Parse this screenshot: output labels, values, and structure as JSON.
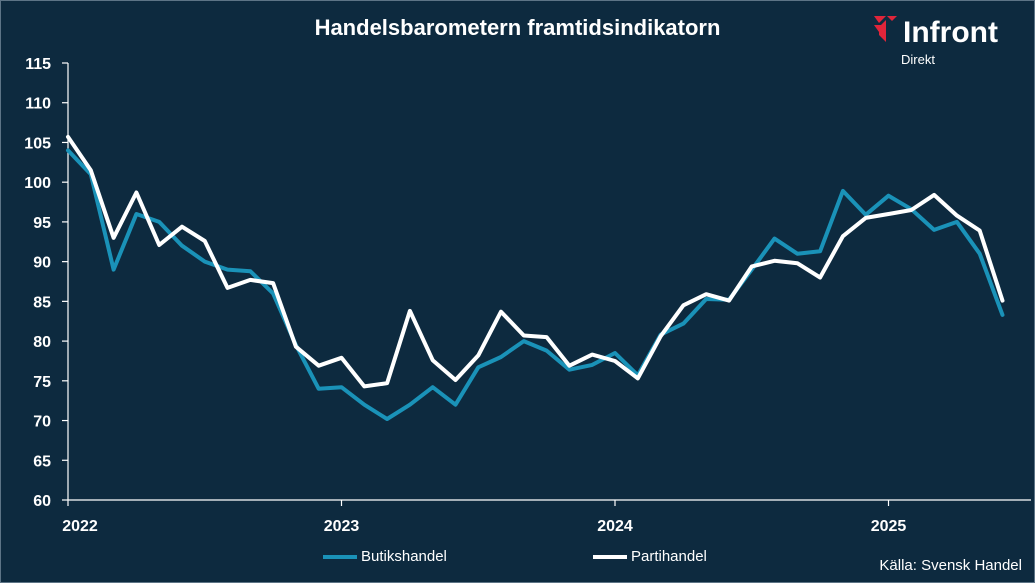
{
  "colors": {
    "background": "#0d2a3f",
    "axis": "#ffffff",
    "accent_red": "#e0253a"
  },
  "logo": {
    "name": "Infront",
    "subtitle": "Direkt",
    "icon": "infront-logo-icon"
  },
  "source": "Källa: Svensk Handel",
  "chart_data": {
    "type": "line",
    "title": "Handelsbarometern framtidsindikatorn",
    "xlabel": "",
    "ylabel": "",
    "ylim": [
      60,
      115
    ],
    "yticks": [
      60,
      65,
      70,
      75,
      80,
      85,
      90,
      95,
      100,
      105,
      110,
      115
    ],
    "xticks": [
      "2022",
      "2023",
      "2024",
      "2025"
    ],
    "grid": false,
    "legend_position": "bottom",
    "x_start": "2022-01",
    "series": [
      {
        "name": "Butikshandel",
        "color": "#1a92b8",
        "values": [
          104,
          101,
          89,
          96,
          95,
          92,
          90,
          89,
          88.8,
          86,
          79.5,
          74,
          74.2,
          72,
          70.2,
          72,
          74.2,
          72,
          76.7,
          78,
          80,
          78.8,
          76.4,
          77,
          78.5,
          75.7,
          80.8,
          82.2,
          85.3,
          85.2,
          89,
          92.9,
          91,
          91.3,
          98.9,
          95.9,
          98.3,
          96.6,
          94,
          95,
          91,
          83.3
        ]
      },
      {
        "name": "Partihandel",
        "color": "#ffffff",
        "values": [
          105.7,
          101.5,
          93,
          98.7,
          92.1,
          94.4,
          92.6,
          86.7,
          87.7,
          87.3,
          79.3,
          76.9,
          77.9,
          74.3,
          74.7,
          83.8,
          77.6,
          75.1,
          78.2,
          83.7,
          80.7,
          80.5,
          76.9,
          78.3,
          77.5,
          75.3,
          80.6,
          84.5,
          85.9,
          85.1,
          89.4,
          90.1,
          89.8,
          88,
          93.2,
          95.5,
          96,
          96.5,
          98.4,
          95.8,
          93.9,
          85.1
        ]
      }
    ]
  }
}
